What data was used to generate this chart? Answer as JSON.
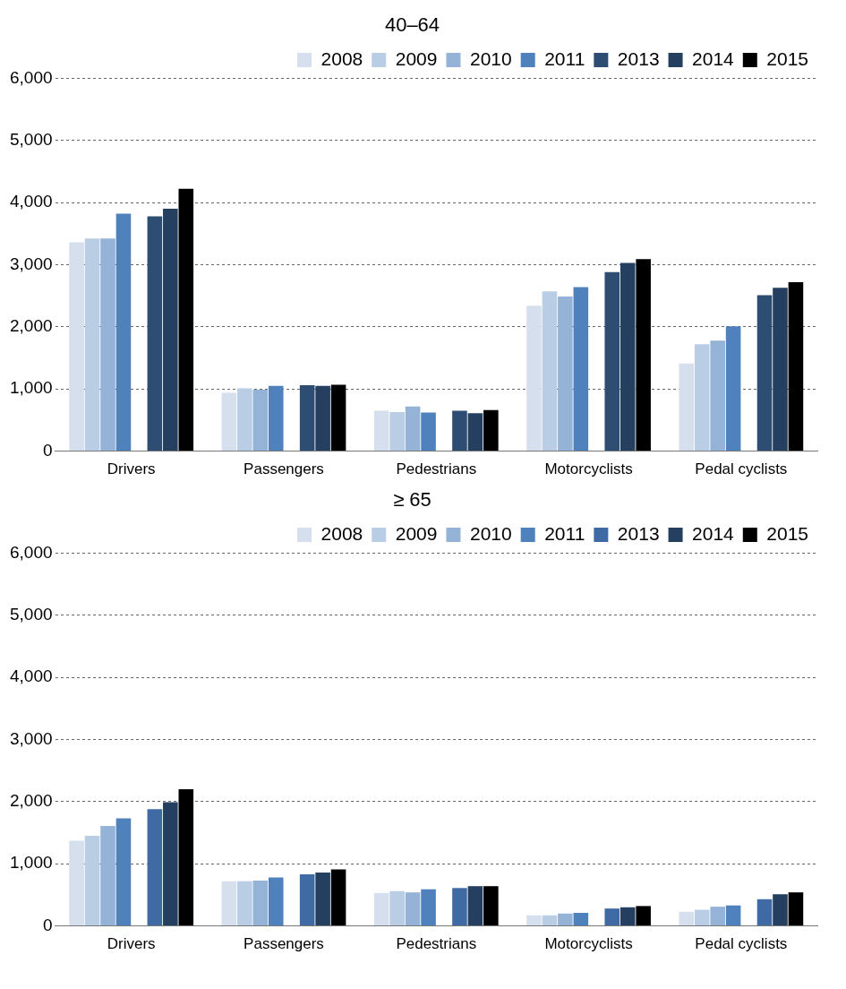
{
  "chart_data": [
    {
      "type": "bar",
      "title": "40–64",
      "categories": [
        "Drivers",
        "Passengers",
        "Pedestrians",
        "Motorcyclists",
        "Pedal cyclists"
      ],
      "ylim": [
        0,
        6000
      ],
      "yticks": [
        {
          "value": 0,
          "label": "0"
        },
        {
          "value": 1000,
          "label": "1,000"
        },
        {
          "value": 2000,
          "label": "2,000"
        },
        {
          "value": 3000,
          "label": "3,000"
        },
        {
          "value": 4000,
          "label": "4,000"
        },
        {
          "value": 5000,
          "label": "5,000"
        },
        {
          "value": 6000,
          "label": "6,000"
        }
      ],
      "grid": "y",
      "legend": "top right",
      "series": [
        {
          "name": "2008",
          "color": "#d6dfed",
          "values": [
            3360,
            940,
            650,
            2340,
            1410
          ]
        },
        {
          "name": "2009",
          "color": "#b9cde5",
          "values": [
            3420,
            1010,
            630,
            2570,
            1720
          ]
        },
        {
          "name": "2010",
          "color": "#95b3d7",
          "values": [
            3420,
            990,
            720,
            2490,
            1780
          ]
        },
        {
          "name": "2011",
          "color": "#4f81bd",
          "values": [
            3820,
            1050,
            620,
            2640,
            2010
          ]
        },
        {
          "color": "#ffffff",
          "values": [
            null,
            null,
            null,
            null,
            null
          ]
        },
        {
          "name": "2013",
          "color": "#2e4d73",
          "values": [
            3780,
            1060,
            650,
            2880,
            2510
          ]
        },
        {
          "name": "2014",
          "color": "#253f60",
          "values": [
            3900,
            1050,
            610,
            3030,
            2630
          ]
        },
        {
          "name": "2015",
          "color": "#000000",
          "values": [
            4220,
            1070,
            660,
            3090,
            2720
          ]
        }
      ]
    },
    {
      "type": "bar",
      "title": "≥ 65",
      "categories": [
        "Drivers",
        "Passengers",
        "Pedestrians",
        "Motorcyclists",
        "Pedal cyclists"
      ],
      "ylim": [
        0,
        6000
      ],
      "yticks": [
        {
          "value": 0,
          "label": "0"
        },
        {
          "value": 1000,
          "label": "1,000"
        },
        {
          "value": 2000,
          "label": "2,000"
        },
        {
          "value": 3000,
          "label": "3,000"
        },
        {
          "value": 4000,
          "label": "4,000"
        },
        {
          "value": 5000,
          "label": "5,000"
        },
        {
          "value": 6000,
          "label": "6,000"
        }
      ],
      "grid": "y",
      "legend": "top right",
      "series": [
        {
          "name": "2008",
          "color": "#d6dfed",
          "values": [
            1370,
            720,
            530,
            170,
            230
          ]
        },
        {
          "name": "2009",
          "color": "#b9cde5",
          "values": [
            1450,
            720,
            560,
            170,
            260
          ]
        },
        {
          "name": "2010",
          "color": "#95b3d7",
          "values": [
            1610,
            730,
            540,
            200,
            310
          ]
        },
        {
          "name": "2011",
          "color": "#4f81bd",
          "values": [
            1730,
            780,
            590,
            210,
            330
          ]
        },
        {
          "color": "#ffffff",
          "values": [
            null,
            null,
            null,
            null,
            null
          ]
        },
        {
          "name": "2013",
          "color": "#3f6aa3",
          "values": [
            1880,
            830,
            610,
            280,
            430
          ]
        },
        {
          "name": "2014",
          "color": "#243f60",
          "values": [
            1990,
            860,
            640,
            300,
            510
          ]
        },
        {
          "name": "2015",
          "color": "#000000",
          "values": [
            2200,
            910,
            640,
            320,
            540
          ]
        }
      ]
    }
  ]
}
